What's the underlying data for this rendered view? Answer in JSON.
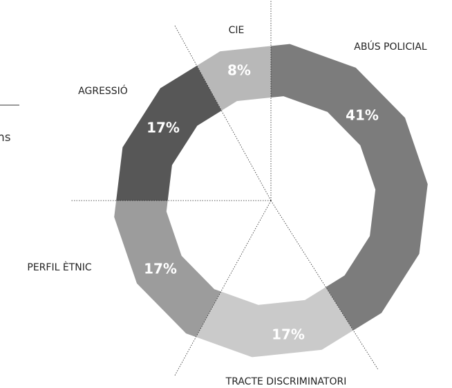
{
  "fragment": "ns",
  "chart_data": {
    "type": "donut",
    "categories": [
      "ABÚS POLICIAL",
      "TRACTE DISCRIMINATORI",
      "PERFIL ÈTNIC",
      "AGRESSIÓ",
      "CIE"
    ],
    "values": [
      41,
      17,
      17,
      17,
      8
    ],
    "value_labels": [
      "41%",
      "17%",
      "17%",
      "17%",
      "8%"
    ],
    "colors": [
      "#7c7c7c",
      "#cacaca",
      "#9c9c9c",
      "#575757",
      "#b8b8b8"
    ]
  }
}
